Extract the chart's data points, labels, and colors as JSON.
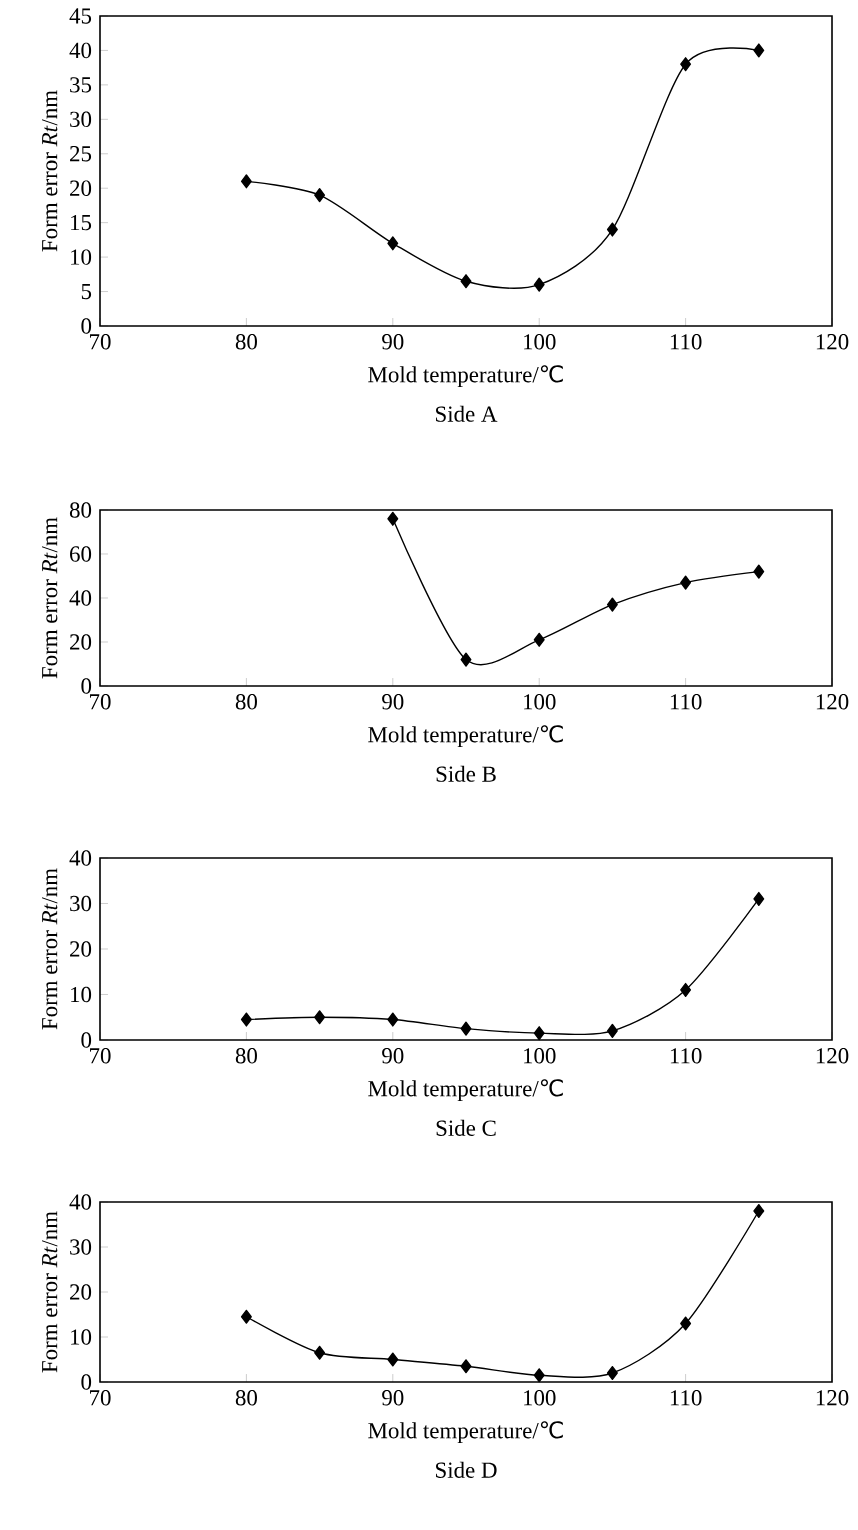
{
  "chart_data": [
    {
      "type": "line",
      "title": "Side A",
      "xlabel": "Mold temperature/℃",
      "ylabel": "Form error *Rt*/nm",
      "x": [
        80,
        85,
        90,
        95,
        100,
        105,
        110,
        115
      ],
      "series": [
        {
          "color": "#000000",
          "values": [
            21,
            19,
            12,
            6.5,
            6,
            14,
            38,
            40
          ]
        }
      ],
      "xlim": [
        70,
        120
      ],
      "ylim": [
        0,
        45
      ],
      "xticks": [
        70,
        80,
        90,
        100,
        110,
        120
      ],
      "yticks": [
        0,
        5,
        10,
        15,
        20,
        25,
        30,
        35,
        40,
        45
      ],
      "marker": "diamond",
      "line_style": "solid"
    },
    {
      "type": "line",
      "title": "Side B",
      "xlabel": "Mold temperature/℃",
      "ylabel": "Form error *Rt*/nm",
      "x": [
        90,
        95,
        100,
        105,
        110,
        115
      ],
      "series": [
        {
          "color": "#000000",
          "values": [
            76,
            12,
            21,
            37,
            47,
            52
          ]
        }
      ],
      "xlim": [
        70,
        120
      ],
      "ylim": [
        0,
        80
      ],
      "xticks": [
        70,
        80,
        90,
        100,
        110,
        120
      ],
      "yticks": [
        0,
        20,
        40,
        60,
        80
      ],
      "marker": "diamond",
      "line_style": "solid"
    },
    {
      "type": "line",
      "title": "Side C",
      "xlabel": "Mold temperature/℃",
      "ylabel": "Form error *Rt*/nm",
      "x": [
        80,
        85,
        90,
        95,
        100,
        105,
        110,
        115
      ],
      "series": [
        {
          "color": "#000000",
          "values": [
            4.5,
            5,
            4.5,
            2.5,
            1.5,
            2,
            11,
            31
          ]
        }
      ],
      "xlim": [
        70,
        120
      ],
      "ylim": [
        0,
        40
      ],
      "xticks": [
        70,
        80,
        90,
        100,
        110,
        120
      ],
      "yticks": [
        0,
        10,
        20,
        30,
        40
      ],
      "marker": "diamond",
      "line_style": "solid"
    },
    {
      "type": "line",
      "title": "Side D",
      "xlabel": "Mold temperature/℃",
      "ylabel": "Form error *Rt*/nm",
      "x": [
        80,
        85,
        90,
        95,
        100,
        105,
        110,
        115
      ],
      "series": [
        {
          "color": "#000000",
          "values": [
            14.5,
            6.5,
            5,
            3.5,
            1.5,
            2,
            13,
            38
          ]
        }
      ],
      "xlim": [
        70,
        120
      ],
      "ylim": [
        0,
        40
      ],
      "xticks": [
        70,
        80,
        90,
        100,
        110,
        120
      ],
      "yticks": [
        0,
        10,
        20,
        30,
        40
      ],
      "marker": "diamond",
      "line_style": "solid"
    }
  ]
}
